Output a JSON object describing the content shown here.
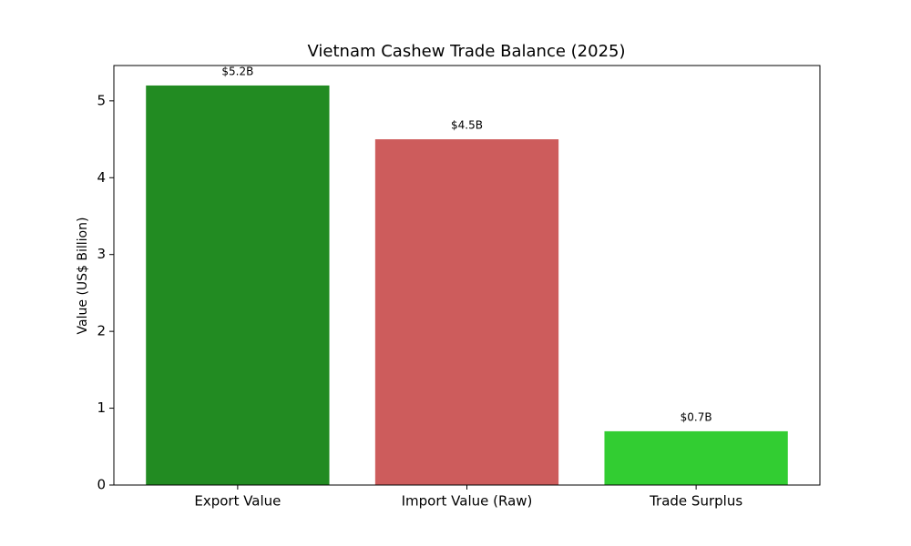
{
  "chart_data": {
    "type": "bar",
    "title": "Vietnam Cashew Trade Balance (2025)",
    "y_label": "Value (US$ Billion)",
    "categories": [
      "Export Value",
      "Import Value (Raw)",
      "Trade Surplus"
    ],
    "values": [
      5.2,
      4.5,
      0.7
    ],
    "value_labels": [
      "$5.2B",
      "$4.5B",
      "$0.7B"
    ],
    "colors": [
      "#228b22",
      "#cd5c5c",
      "#32cd32"
    ],
    "ylim": [
      0,
      5.46
    ],
    "yticks": [
      0,
      1,
      2,
      3,
      4,
      5
    ],
    "grid": false
  }
}
